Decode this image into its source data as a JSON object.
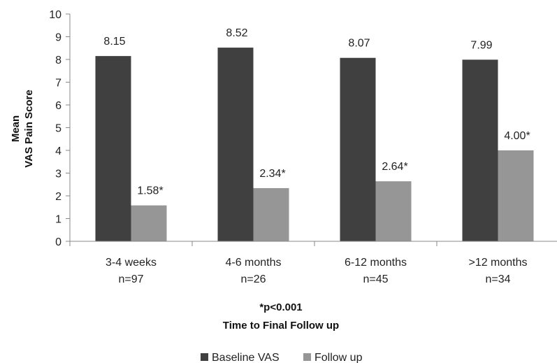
{
  "chart_data": {
    "type": "bar",
    "categories": [
      [
        "3-4 weeks",
        "n=97"
      ],
      [
        "4-6 months",
        "n=26"
      ],
      [
        "6-12 months",
        "n=45"
      ],
      [
        ">12 months",
        "n=34"
      ]
    ],
    "series": [
      {
        "name": "Baseline VAS",
        "values": [
          8.15,
          8.52,
          8.07,
          7.99
        ],
        "labels": [
          "8.15",
          "8.52",
          "8.07",
          "7.99"
        ],
        "color": "#404040"
      },
      {
        "name": "Follow up",
        "values": [
          1.58,
          2.34,
          2.64,
          4.0
        ],
        "labels": [
          "1.58*",
          "2.34*",
          "2.64*",
          "4.00*"
        ],
        "color": "#969696"
      }
    ],
    "ylabel": [
      "Mean",
      "VAS Pain Score"
    ],
    "xlabel": [
      "*p<0.001",
      "Time to Final Follow up"
    ],
    "ylim": [
      0,
      10
    ],
    "yticks": [
      0,
      1,
      2,
      3,
      4,
      5,
      6,
      7,
      8,
      9,
      10
    ],
    "grid": false,
    "legend_position": "bottom"
  }
}
